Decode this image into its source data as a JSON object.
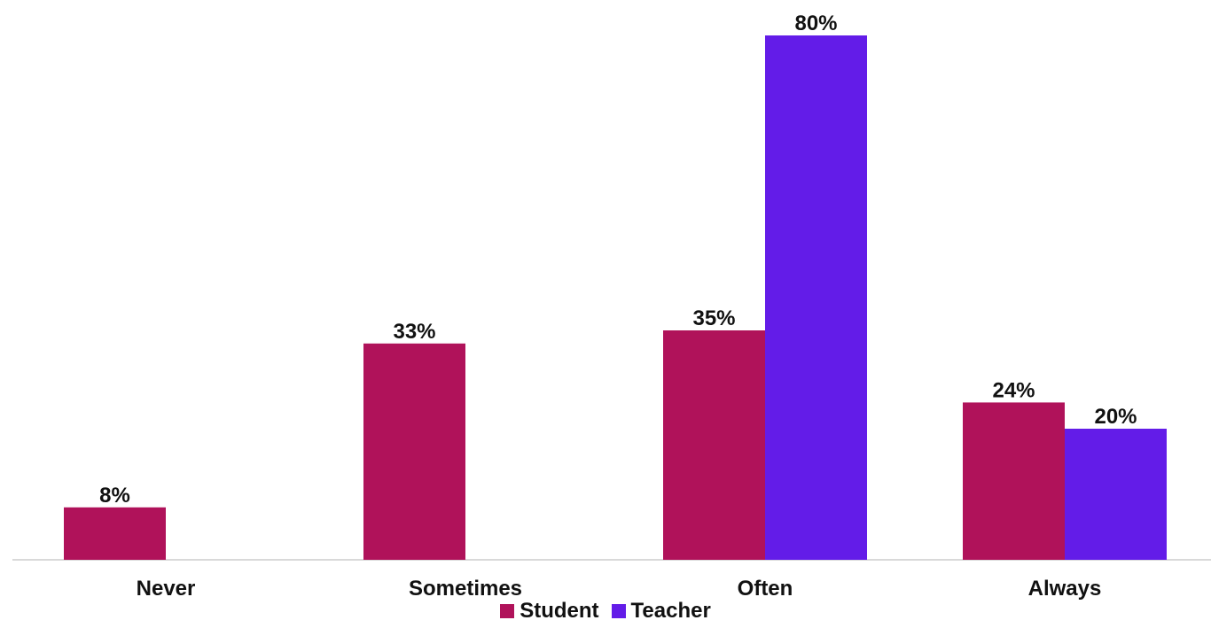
{
  "chart_data": {
    "type": "bar",
    "categories": [
      "Never",
      "Sometimes",
      "Often",
      "Always"
    ],
    "series": [
      {
        "name": "Student",
        "color": "#B0125A",
        "values": [
          8,
          33,
          35,
          24
        ],
        "labels": [
          "8%",
          "33%",
          "35%",
          "24%"
        ]
      },
      {
        "name": "Teacher",
        "color": "#631CE8",
        "values": [
          null,
          null,
          80,
          20
        ],
        "labels": [
          null,
          null,
          "80%",
          "20%"
        ]
      }
    ],
    "ylim": [
      0,
      80
    ],
    "grid": false,
    "legend": "bottom-center",
    "baseline_color": "#D9D9D9"
  }
}
